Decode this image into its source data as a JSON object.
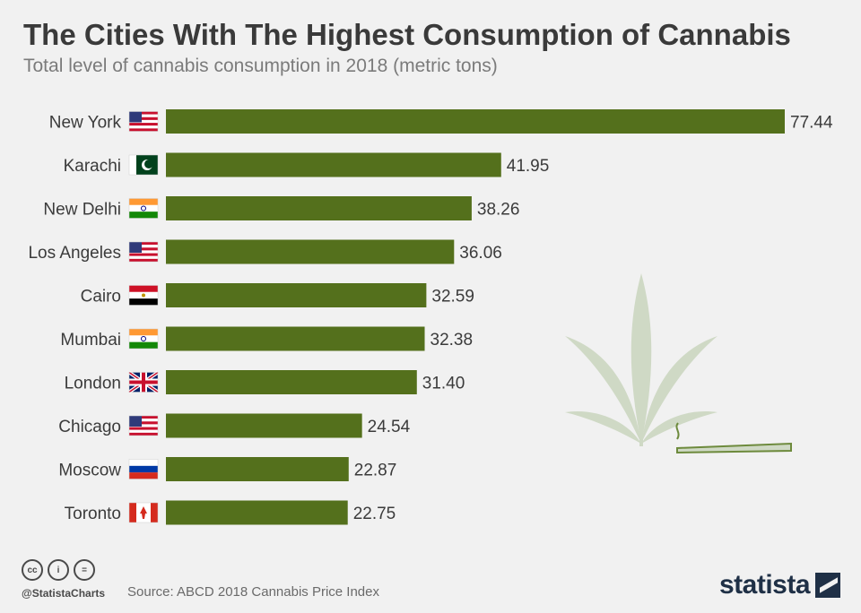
{
  "title": "The Cities With The Highest Consumption of Cannabis",
  "subtitle": "Total level of cannabis consumption in 2018 (metric tons)",
  "chart_data": {
    "type": "bar",
    "orientation": "horizontal",
    "title": "The Cities With The Highest Consumption of Cannabis",
    "subtitle": "Total level of cannabis consumption in 2018 (metric tons)",
    "categories": [
      "New York",
      "Karachi",
      "New Delhi",
      "Los Angeles",
      "Cairo",
      "Mumbai",
      "London",
      "Chicago",
      "Moscow",
      "Toronto"
    ],
    "values": [
      77.44,
      41.95,
      38.26,
      36.06,
      32.59,
      32.38,
      31.4,
      24.54,
      22.87,
      22.75
    ],
    "value_labels": [
      "77.44",
      "41.95",
      "38.26",
      "36.06",
      "32.59",
      "32.38",
      "31.40",
      "24.54",
      "22.87",
      "22.75"
    ],
    "flags": [
      "us-flag-icon",
      "pakistan-flag-icon",
      "india-flag-icon",
      "us-flag-icon",
      "egypt-flag-icon",
      "india-flag-icon",
      "uk-flag-icon",
      "us-flag-icon",
      "russia-flag-icon",
      "canada-flag-icon"
    ],
    "xlim": [
      0,
      77.44
    ],
    "grid": false,
    "legend": "none",
    "bar_color": "#54701c"
  },
  "footer": {
    "handle": "@StatistaCharts",
    "source": "Source: ABCD 2018 Cannabis Price Index",
    "brand": "statista",
    "license_icons": [
      "cc-icon",
      "attribution-icon",
      "no-derivatives-icon"
    ]
  },
  "colors": {
    "background": "#f1f1f1",
    "bar": "#54701c",
    "leaf": "#cfd9c5",
    "brand": "#1f3046"
  }
}
